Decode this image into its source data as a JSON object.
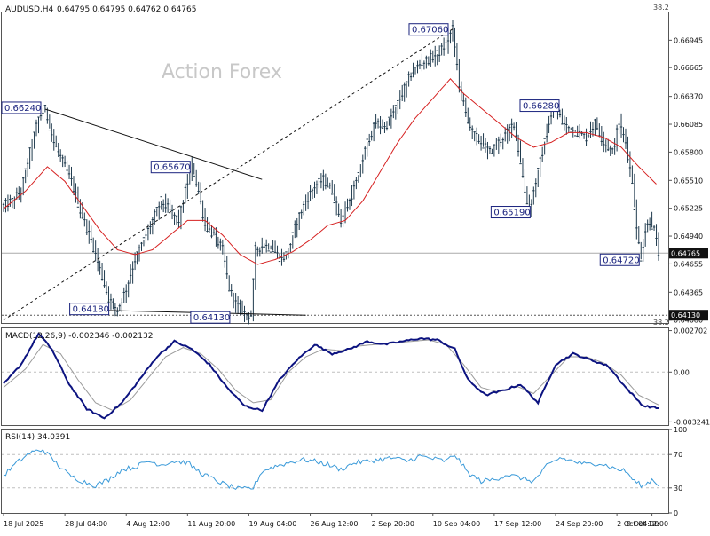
{
  "header": {
    "symbol": "AUDUSD,H4",
    "ohlc": "0.64795 0.64795 0.64762 0.64765",
    "top_right": "38.2",
    "bottom_right": "38.2"
  },
  "watermark": "Action Forex",
  "chart_data": [
    {
      "type": "candlestick",
      "panel": "price",
      "ylim": [
        0.6405,
        0.6723
      ],
      "y_ticks": [
        "0.66945",
        "0.66665",
        "0.66370",
        "0.66085",
        "0.65800",
        "0.65510",
        "0.65225",
        "0.64940",
        "0.64655",
        "0.64365",
        "0.64080"
      ],
      "y_tick_values": [
        0.66945,
        0.66665,
        0.6637,
        0.66085,
        0.658,
        0.6551,
        0.65225,
        0.6494,
        0.64655,
        0.64365,
        0.6408
      ],
      "current_price": "0.64765",
      "current_price_value": 0.64765,
      "support_label": "0.64130",
      "support_value": 0.6413,
      "annotations": [
        {
          "text": "0.66240",
          "value": 0.6624
        },
        {
          "text": "0.65670",
          "value": 0.6567
        },
        {
          "text": "0.64180",
          "value": 0.6418
        },
        {
          "text": "0.64130",
          "value": 0.6413
        },
        {
          "text": "0.67060",
          "value": 0.6706
        },
        {
          "text": "0.66280",
          "value": 0.6628
        },
        {
          "text": "0.65190",
          "value": 0.6519
        },
        {
          "text": "0.64720",
          "value": 0.6472
        }
      ],
      "price_path": [
        [
          0,
          0.6525
        ],
        [
          4,
          0.653
        ],
        [
          8,
          0.654
        ],
        [
          12,
          0.658
        ],
        [
          16,
          0.6615
        ],
        [
          19,
          0.6624
        ],
        [
          23,
          0.659
        ],
        [
          27,
          0.657
        ],
        [
          31,
          0.655
        ],
        [
          35,
          0.652
        ],
        [
          40,
          0.649
        ],
        [
          44,
          0.646
        ],
        [
          48,
          0.643
        ],
        [
          52,
          0.6418
        ],
        [
          56,
          0.644
        ],
        [
          60,
          0.647
        ],
        [
          64,
          0.649
        ],
        [
          68,
          0.651
        ],
        [
          72,
          0.653
        ],
        [
          76,
          0.652
        ],
        [
          80,
          0.651
        ],
        [
          83,
          0.654
        ],
        [
          86,
          0.6567
        ],
        [
          89,
          0.654
        ],
        [
          92,
          0.6505
        ],
        [
          96,
          0.6495
        ],
        [
          100,
          0.648
        ],
        [
          103,
          0.644
        ],
        [
          106,
          0.6425
        ],
        [
          110,
          0.6415
        ],
        [
          113,
          0.6413
        ],
        [
          115,
          0.648
        ],
        [
          119,
          0.6485
        ],
        [
          123,
          0.648
        ],
        [
          127,
          0.647
        ],
        [
          130,
          0.6478
        ],
        [
          134,
          0.651
        ],
        [
          138,
          0.653
        ],
        [
          142,
          0.6545
        ],
        [
          146,
          0.6552
        ],
        [
          150,
          0.654
        ],
        [
          154,
          0.651
        ],
        [
          158,
          0.653
        ],
        [
          162,
          0.6555
        ],
        [
          166,
          0.659
        ],
        [
          170,
          0.661
        ],
        [
          174,
          0.6605
        ],
        [
          178,
          0.662
        ],
        [
          182,
          0.664
        ],
        [
          186,
          0.666
        ],
        [
          190,
          0.667
        ],
        [
          194,
          0.6675
        ],
        [
          198,
          0.668
        ],
        [
          202,
          0.669
        ],
        [
          205,
          0.6706
        ],
        [
          208,
          0.665
        ],
        [
          211,
          0.662
        ],
        [
          214,
          0.66
        ],
        [
          218,
          0.659
        ],
        [
          222,
          0.658
        ],
        [
          226,
          0.659
        ],
        [
          230,
          0.66
        ],
        [
          233,
          0.661
        ],
        [
          236,
          0.657
        ],
        [
          238,
          0.654
        ],
        [
          240,
          0.6519
        ],
        [
          243,
          0.655
        ],
        [
          246,
          0.658
        ],
        [
          249,
          0.661
        ],
        [
          252,
          0.6628
        ],
        [
          255,
          0.661
        ],
        [
          258,
          0.6605
        ],
        [
          262,
          0.66
        ],
        [
          266,
          0.6595
        ],
        [
          270,
          0.661
        ],
        [
          274,
          0.659
        ],
        [
          278,
          0.658
        ],
        [
          281,
          0.661
        ],
        [
          284,
          0.659
        ],
        [
          287,
          0.655
        ],
        [
          289,
          0.65
        ],
        [
          291,
          0.6472
        ],
        [
          293,
          0.65
        ],
        [
          295,
          0.651
        ],
        [
          297,
          0.65
        ],
        [
          299,
          0.64765
        ]
      ],
      "sma_path": [
        [
          0,
          0.6522
        ],
        [
          10,
          0.654
        ],
        [
          20,
          0.6565
        ],
        [
          28,
          0.655
        ],
        [
          36,
          0.6525
        ],
        [
          44,
          0.65
        ],
        [
          52,
          0.648
        ],
        [
          60,
          0.6475
        ],
        [
          68,
          0.648
        ],
        [
          76,
          0.6495
        ],
        [
          84,
          0.651
        ],
        [
          92,
          0.651
        ],
        [
          100,
          0.6495
        ],
        [
          108,
          0.6475
        ],
        [
          116,
          0.6465
        ],
        [
          124,
          0.647
        ],
        [
          132,
          0.6478
        ],
        [
          140,
          0.649
        ],
        [
          148,
          0.6505
        ],
        [
          156,
          0.651
        ],
        [
          164,
          0.653
        ],
        [
          172,
          0.656
        ],
        [
          180,
          0.659
        ],
        [
          188,
          0.6615
        ],
        [
          196,
          0.6635
        ],
        [
          204,
          0.6655
        ],
        [
          210,
          0.664
        ],
        [
          218,
          0.6625
        ],
        [
          226,
          0.661
        ],
        [
          234,
          0.6595
        ],
        [
          242,
          0.6585
        ],
        [
          250,
          0.659
        ],
        [
          258,
          0.66
        ],
        [
          266,
          0.66
        ],
        [
          274,
          0.6595
        ],
        [
          282,
          0.6585
        ],
        [
          290,
          0.6565
        ],
        [
          299,
          0.6545
        ]
      ],
      "trendlines": [
        {
          "from": [
            19,
            0.6624
          ],
          "to": [
            118,
            0.6552
          ],
          "style": "solid"
        },
        {
          "from": [
            0,
            0.6408
          ],
          "to": [
            205,
            0.6706
          ],
          "style": "dashed"
        },
        {
          "from": [
            44,
            0.6418
          ],
          "to": [
            138,
            0.6413
          ],
          "style": "solid"
        }
      ]
    },
    {
      "type": "line",
      "panel": "macd",
      "label": "MACD(12,26,9) -0.002346 -0.002132",
      "ylim": [
        -0.00345,
        0.00285
      ],
      "y_ticks": [
        "0.002702",
        "0.00",
        "-0.003241"
      ],
      "y_tick_values": [
        0.002702,
        0.0,
        -0.003241
      ],
      "macd_path": [
        [
          0,
          -0.0008
        ],
        [
          8,
          0.0005
        ],
        [
          16,
          0.0025
        ],
        [
          22,
          0.0015
        ],
        [
          30,
          -0.0008
        ],
        [
          38,
          -0.0024
        ],
        [
          46,
          -0.003
        ],
        [
          54,
          -0.002
        ],
        [
          62,
          -0.0005
        ],
        [
          70,
          0.001
        ],
        [
          78,
          0.002
        ],
        [
          86,
          0.0015
        ],
        [
          94,
          0.0005
        ],
        [
          102,
          -0.001
        ],
        [
          110,
          -0.0022
        ],
        [
          118,
          -0.0025
        ],
        [
          126,
          -0.0005
        ],
        [
          134,
          0.0008
        ],
        [
          142,
          0.0018
        ],
        [
          150,
          0.0012
        ],
        [
          158,
          0.0015
        ],
        [
          166,
          0.002
        ],
        [
          174,
          0.0018
        ],
        [
          182,
          0.002
        ],
        [
          190,
          0.0022
        ],
        [
          198,
          0.0021
        ],
        [
          206,
          0.0015
        ],
        [
          212,
          -0.0005
        ],
        [
          220,
          -0.0015
        ],
        [
          228,
          -0.0012
        ],
        [
          236,
          -0.0008
        ],
        [
          244,
          -0.002
        ],
        [
          252,
          0.0005
        ],
        [
          260,
          0.0012
        ],
        [
          268,
          0.0008
        ],
        [
          276,
          0.0004
        ],
        [
          284,
          -0.001
        ],
        [
          292,
          -0.0022
        ],
        [
          299,
          -0.002346
        ]
      ],
      "signal_path": [
        [
          0,
          -0.001
        ],
        [
          10,
          0.0002
        ],
        [
          18,
          0.0018
        ],
        [
          26,
          0.0012
        ],
        [
          34,
          -0.0005
        ],
        [
          42,
          -0.002
        ],
        [
          50,
          -0.0025
        ],
        [
          58,
          -0.0018
        ],
        [
          66,
          -0.0004
        ],
        [
          74,
          0.001
        ],
        [
          82,
          0.0016
        ],
        [
          90,
          0.0012
        ],
        [
          98,
          0.0002
        ],
        [
          106,
          -0.0012
        ],
        [
          114,
          -0.002
        ],
        [
          122,
          -0.0018
        ],
        [
          130,
          0.0
        ],
        [
          138,
          0.001
        ],
        [
          146,
          0.0015
        ],
        [
          154,
          0.0014
        ],
        [
          162,
          0.0017
        ],
        [
          170,
          0.0018
        ],
        [
          178,
          0.0019
        ],
        [
          186,
          0.002
        ],
        [
          194,
          0.0021
        ],
        [
          202,
          0.0018
        ],
        [
          210,
          0.0005
        ],
        [
          218,
          -0.001
        ],
        [
          226,
          -0.0013
        ],
        [
          234,
          -0.0009
        ],
        [
          242,
          -0.0014
        ],
        [
          250,
          -0.0002
        ],
        [
          258,
          0.001
        ],
        [
          266,
          0.001
        ],
        [
          274,
          0.0006
        ],
        [
          282,
          -0.0002
        ],
        [
          290,
          -0.0015
        ],
        [
          299,
          -0.002132
        ]
      ]
    },
    {
      "type": "line",
      "panel": "rsi",
      "label": "RSI(14) 34.0391",
      "ylim": [
        0,
        100
      ],
      "y_ticks": [
        "100",
        "70",
        "30",
        "0"
      ],
      "y_tick_values": [
        100,
        70,
        30,
        0
      ],
      "rsi_path": [
        [
          0,
          45
        ],
        [
          6,
          60
        ],
        [
          12,
          72
        ],
        [
          18,
          76
        ],
        [
          24,
          60
        ],
        [
          30,
          45
        ],
        [
          36,
          38
        ],
        [
          42,
          33
        ],
        [
          48,
          40
        ],
        [
          54,
          52
        ],
        [
          60,
          55
        ],
        [
          66,
          62
        ],
        [
          72,
          58
        ],
        [
          78,
          62
        ],
        [
          84,
          60
        ],
        [
          90,
          48
        ],
        [
          96,
          40
        ],
        [
          102,
          33
        ],
        [
          108,
          28
        ],
        [
          114,
          30
        ],
        [
          118,
          50
        ],
        [
          124,
          56
        ],
        [
          130,
          60
        ],
        [
          136,
          64
        ],
        [
          142,
          62
        ],
        [
          148,
          58
        ],
        [
          154,
          52
        ],
        [
          160,
          60
        ],
        [
          166,
          62
        ],
        [
          172,
          64
        ],
        [
          178,
          66
        ],
        [
          184,
          62
        ],
        [
          190,
          68
        ],
        [
          196,
          65
        ],
        [
          202,
          62
        ],
        [
          206,
          70
        ],
        [
          212,
          48
        ],
        [
          218,
          38
        ],
        [
          224,
          40
        ],
        [
          230,
          46
        ],
        [
          236,
          42
        ],
        [
          242,
          38
        ],
        [
          248,
          56
        ],
        [
          254,
          66
        ],
        [
          260,
          62
        ],
        [
          266,
          58
        ],
        [
          272,
          60
        ],
        [
          278,
          54
        ],
        [
          284,
          50
        ],
        [
          288,
          38
        ],
        [
          292,
          32
        ],
        [
          296,
          40
        ],
        [
          299,
          34
        ]
      ]
    }
  ],
  "x_axis": {
    "labels": [
      "18 Jul 2025",
      "28 Jul 04:00",
      "4 Aug 12:00",
      "11 Aug 20:00",
      "19 Aug 04:00",
      "26 Aug 12:00",
      "2 Sep 20:00",
      "10 Sep 04:00",
      "17 Sep 12:00",
      "24 Sep 20:00",
      "2 Oct 04:00",
      "9 Oct 12:00"
    ],
    "label_bars": [
      0,
      28,
      56,
      84,
      112,
      140,
      168,
      196,
      224,
      252,
      280,
      296
    ]
  },
  "colors": {
    "candle": "#1f3a4d",
    "sma": "#d62020",
    "macd_main": "#0c1380",
    "macd_signal": "#9a9a9a",
    "rsi": "#3a9ad9",
    "trend": "#111111",
    "grid": "#bfbfbf",
    "label_border": "#1a237e",
    "watermark": "#c8c8c8"
  }
}
